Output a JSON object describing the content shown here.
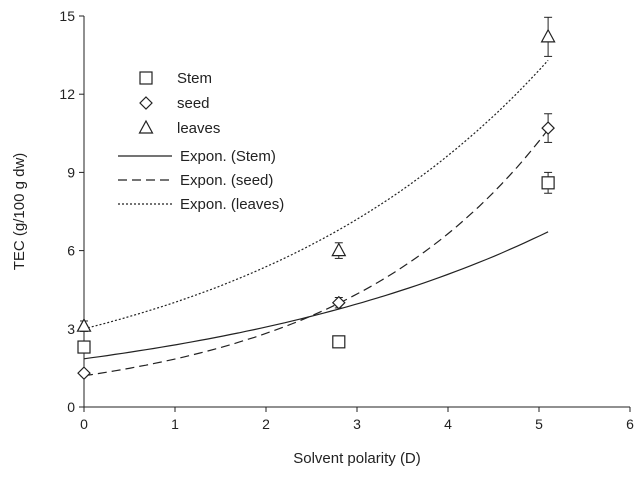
{
  "chart_data": {
    "type": "scatter",
    "xlabel": "Solvent polarity (D)",
    "ylabel": "TEC (g/100 g dw)",
    "xlim": [
      0,
      6
    ],
    "ylim": [
      0,
      15
    ],
    "xticks": [
      "0",
      "1",
      "2",
      "3",
      "4",
      "5",
      "6"
    ],
    "yticks": [
      "0",
      "3",
      "6",
      "9",
      "12",
      "15"
    ],
    "grid": false,
    "legend_position": "top-left",
    "series": [
      {
        "name": "Stem",
        "marker": "square",
        "points": [
          {
            "x": 0,
            "y": 2.3,
            "err": 0.2
          },
          {
            "x": 2.8,
            "y": 2.5,
            "err": 0.2
          },
          {
            "x": 5.1,
            "y": 8.6,
            "err": 0.4
          }
        ]
      },
      {
        "name": "seed",
        "marker": "diamond",
        "points": [
          {
            "x": 0,
            "y": 1.3,
            "err": 0.1
          },
          {
            "x": 2.8,
            "y": 4.0,
            "err": 0.2
          },
          {
            "x": 5.1,
            "y": 10.7,
            "err": 0.55
          }
        ]
      },
      {
        "name": "leaves",
        "marker": "triangle",
        "points": [
          {
            "x": 0,
            "y": 3.1,
            "err": 0.2
          },
          {
            "x": 2.8,
            "y": 6.0,
            "err": 0.3
          },
          {
            "x": 5.1,
            "y": 14.2,
            "err": 0.75
          }
        ]
      }
    ],
    "trendlines": [
      {
        "name": "Expon. (Stem)",
        "style": "solid",
        "a": 1.85,
        "b": 0.253,
        "x_range": [
          0,
          5.1
        ]
      },
      {
        "name": "Expon. (seed)",
        "style": "dashed",
        "a": 1.2,
        "b": 0.428,
        "x_range": [
          0,
          5.1
        ]
      },
      {
        "name": "Expon. (leaves)",
        "style": "dotted",
        "a": 3.0,
        "b": 0.292,
        "x_range": [
          0,
          5.1
        ]
      }
    ]
  }
}
